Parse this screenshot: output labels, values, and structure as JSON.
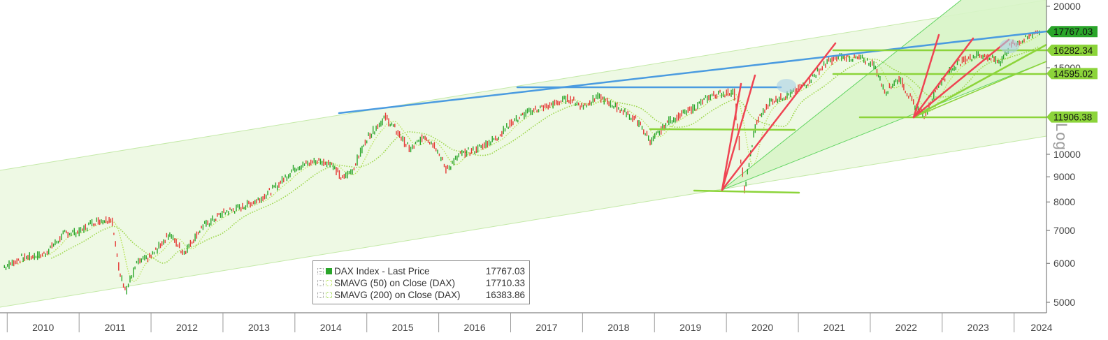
{
  "chart_data": {
    "type": "line",
    "title": "",
    "scale": "log",
    "ylim": [
      4850,
      20400
    ],
    "y_ticks": [
      5000,
      6000,
      7000,
      8000,
      9000,
      10000,
      15000,
      20000
    ],
    "y_tick_labels": [
      "5000",
      "6000",
      "7000",
      "8000",
      "9000",
      "10000",
      "15000",
      "20000"
    ],
    "x_tick_labels": [
      "2010",
      "2011",
      "2012",
      "2013",
      "2014",
      "2015",
      "2016",
      "2017",
      "2018",
      "2019",
      "2020",
      "2021",
      "2022",
      "2023",
      "2024"
    ],
    "axis_badge": "Log",
    "grid": false,
    "legend_position": "bottom-center",
    "series": [
      {
        "name": "DAX Index - Last Price",
        "last_value": "17767.03",
        "color": "#2aa52a",
        "x": [
          2009.95,
          2010.2,
          2010.5,
          2010.8,
          2011.0,
          2011.2,
          2011.45,
          2011.55,
          2011.65,
          2011.8,
          2012.0,
          2012.25,
          2012.45,
          2012.7,
          2013.0,
          2013.25,
          2013.5,
          2013.7,
          2014.0,
          2014.3,
          2014.5,
          2014.65,
          2014.8,
          2015.0,
          2015.25,
          2015.4,
          2015.6,
          2015.8,
          2015.95,
          2016.1,
          2016.3,
          2016.5,
          2016.8,
          2017.0,
          2017.3,
          2017.5,
          2017.8,
          2018.0,
          2018.2,
          2018.5,
          2018.75,
          2018.95,
          2019.2,
          2019.5,
          2019.8,
          2020.1,
          2020.2,
          2020.25,
          2020.4,
          2020.6,
          2020.9,
          2021.1,
          2021.4,
          2021.6,
          2021.9,
          2022.05,
          2022.2,
          2022.4,
          2022.6,
          2022.75,
          2022.95,
          2023.2,
          2023.5,
          2023.8,
          2023.95,
          2024.15,
          2024.3,
          2024.35
        ],
        "y": [
          5900,
          6150,
          6250,
          6900,
          6950,
          7300,
          7400,
          5800,
          5300,
          6000,
          6200,
          6900,
          6300,
          7100,
          7600,
          7800,
          8100,
          8500,
          9400,
          9700,
          9600,
          8900,
          9300,
          10800,
          11900,
          11200,
          10200,
          10900,
          10400,
          9300,
          10000,
          10200,
          10800,
          11600,
          12300,
          12500,
          13000,
          12500,
          13100,
          12400,
          11700,
          10600,
          11700,
          12300,
          13200,
          13400,
          9500,
          8450,
          11500,
          12800,
          13300,
          13900,
          15400,
          15800,
          15600,
          15200,
          13400,
          14300,
          12600,
          12000,
          13900,
          15300,
          16000,
          15400,
          16700,
          17100,
          17800,
          17767
        ]
      },
      {
        "name": "SMAVG (50)  on Close (DAX)",
        "last_value": "17710.33",
        "color": "#b8e35a"
      },
      {
        "name": "SMAVG (200)  on Close (DAX)",
        "last_value": "16383.86",
        "color": "#9cd64a"
      }
    ],
    "levels": [
      {
        "label": "17767.03",
        "value": 17767.03,
        "color": "#2aa52a"
      },
      {
        "label": "16282.34",
        "value": 16282.34,
        "color": "#8cd43a"
      },
      {
        "label": "14595.02",
        "value": 14595.02,
        "color": "#8cd43a"
      },
      {
        "label": "11906.38",
        "value": 11906.38,
        "color": "#8cd43a"
      }
    ],
    "colors": {
      "trend_blue": "#4a9be0",
      "support_green": "#8cd43a",
      "rally_red": "#ef4452",
      "channel_fill": "#eef9e4"
    }
  }
}
